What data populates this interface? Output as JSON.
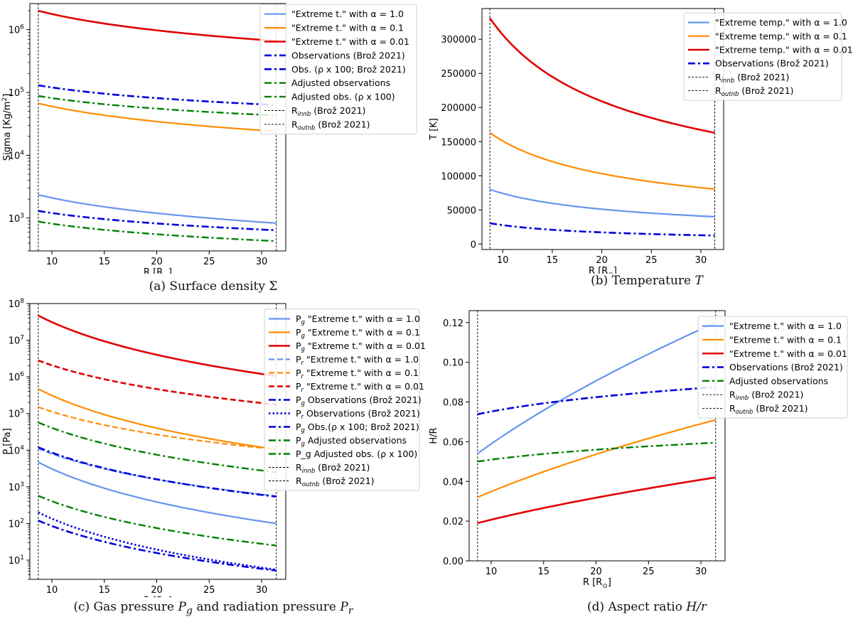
{
  "chart_data": [
    {
      "id": "a",
      "type": "line",
      "caption_prefix": "(a) Surface density",
      "caption_symbol": "Σ",
      "xlabel": "R [R",
      "xlabel_sub": "⊙",
      "xlabel_end": "]",
      "ylabel": "Sigma [Kg/m",
      "ylabel_sup": "2",
      "ylabel_end": "]",
      "yscale": "log",
      "xlim": [
        7.9,
        32.3
      ],
      "ylim": [
        300,
        2600000
      ],
      "xticks": [
        10,
        15,
        20,
        25,
        30
      ],
      "xtick_labels": [
        "10",
        "15",
        "20",
        "25",
        "30"
      ],
      "yticks": [
        1000,
        10000,
        100000,
        1000000
      ],
      "ytick_labels": [
        {
          "b": "10",
          "e": "3"
        },
        {
          "b": "10",
          "e": "4"
        },
        {
          "b": "10",
          "e": "5"
        },
        {
          "b": "10",
          "e": "6"
        }
      ],
      "vlines": [
        8.7,
        31.4
      ],
      "series": [
        {
          "name": "\"Extreme t.\" with α = 1.0",
          "color": "#6495ED",
          "dash": "solid",
          "width": 2.2,
          "r0": 8.7,
          "r1": 31.4,
          "v0": 2350,
          "v1": 830
        },
        {
          "name": "\"Extreme t.\" with α = 0.1",
          "color": "#FF8C00",
          "dash": "solid",
          "width": 2.2,
          "r0": 8.7,
          "r1": 31.4,
          "v0": 67000,
          "v1": 24000
        },
        {
          "name": "\"Extreme t.\" with α = 0.01",
          "color": "#E00000",
          "dash": "solid",
          "width": 2.6,
          "r0": 8.7,
          "r1": 31.4,
          "v0": 2000000,
          "v1": 660000
        },
        {
          "name": "Observations (Brož 2021)",
          "color": "#0000DD",
          "dash": "dashdot",
          "width": 2.6,
          "r0": 8.7,
          "r1": 31.4,
          "v0": 1300,
          "v1": 640
        },
        {
          "name": "Obs. (ρ x 100; Brož 2021)",
          "color": "#0000DD",
          "dash": "dashdot",
          "width": 2.6,
          "r0": 8.7,
          "r1": 31.4,
          "v0": 130000,
          "v1": 63000
        },
        {
          "name": "Adjusted observations",
          "color": "#008000",
          "dash": "dashdot",
          "width": 2.4,
          "r0": 8.7,
          "r1": 31.4,
          "v0": 880,
          "v1": 430
        },
        {
          "name": "Adjusted obs. (ρ x 100)",
          "color": "#008000",
          "dash": "dashdot",
          "width": 2.4,
          "r0": 8.7,
          "r1": 31.4,
          "v0": 88000,
          "v1": 43000
        }
      ],
      "legend_lines": [
        {
          "name": "R",
          "sub": "innb",
          "tail": " (Brož 2021)"
        },
        {
          "name": "R",
          "sub": "outnb",
          "tail": " (Brož 2021)"
        }
      ],
      "legend_loc": "top-right"
    },
    {
      "id": "b",
      "type": "line",
      "caption_prefix": "(b) Temperature",
      "caption_symbol": "T",
      "xlabel": "R [R",
      "xlabel_sub": "⊙",
      "xlabel_end": "]",
      "ylabel": "T [K]",
      "yscale": "linear",
      "xlim": [
        7.9,
        32.3
      ],
      "ylim": [
        -8000,
        345000
      ],
      "xticks": [
        10,
        15,
        20,
        25,
        30
      ],
      "xtick_labels": [
        "10",
        "15",
        "20",
        "25",
        "30"
      ],
      "yticks": [
        0,
        50000,
        100000,
        150000,
        200000,
        250000,
        300000
      ],
      "ytick_labels": [
        "0",
        "50000",
        "100000",
        "150000",
        "200000",
        "250000",
        "300000"
      ],
      "vlines": [
        8.7,
        31.4
      ],
      "series": [
        {
          "name": "\"Extreme temp.\" with α = 1.0",
          "color": "#6495ED",
          "dash": "solid",
          "width": 2.2,
          "r0": 8.7,
          "r1": 31.4,
          "v0": 80000,
          "v1": 40000
        },
        {
          "name": "\"Extreme temp.\" with α = 0.1",
          "color": "#FF8C00",
          "dash": "solid",
          "width": 2.2,
          "r0": 8.7,
          "r1": 31.4,
          "v0": 163000,
          "v1": 80500
        },
        {
          "name": "\"Extreme temp.\" with α = 0.01",
          "color": "#E00000",
          "dash": "solid",
          "width": 2.6,
          "r0": 8.7,
          "r1": 31.4,
          "v0": 331000,
          "v1": 163000
        },
        {
          "name": "Observations (Brož 2021)",
          "color": "#0000DD",
          "dash": "dashdot",
          "width": 2.6,
          "r0": 8.7,
          "r1": 31.4,
          "v0": 30500,
          "v1": 12500
        }
      ],
      "legend_lines": [
        {
          "name": "R",
          "sub": "innb",
          "tail": " (Brož 2021)"
        },
        {
          "name": "R",
          "sub": "outnb",
          "tail": " (Brož 2021)"
        }
      ],
      "legend_loc": "top-right"
    },
    {
      "id": "c",
      "type": "line",
      "caption_prefix": "(c) Gas pressure",
      "caption_symbol": "P",
      "caption_symbol_sub": "g",
      "caption_middle": "and radiation pressure",
      "caption_symbol2": "P",
      "caption_symbol2_sub": "r",
      "xlabel": "R [R",
      "xlabel_sub": "⊙",
      "xlabel_end": "]",
      "ylabel": "P [Pa]",
      "yscale": "log",
      "xlim": [
        7.9,
        32.3
      ],
      "ylim": [
        3,
        100000000
      ],
      "xticks": [
        10,
        15,
        20,
        25,
        30
      ],
      "xtick_labels": [
        "10",
        "15",
        "20",
        "25",
        "30"
      ],
      "yticks": [
        10,
        100,
        1000,
        10000,
        100000,
        1000000,
        10000000,
        100000000
      ],
      "ytick_labels": [
        {
          "b": "10",
          "e": "1"
        },
        {
          "b": "10",
          "e": "2"
        },
        {
          "b": "10",
          "e": "3"
        },
        {
          "b": "10",
          "e": "4"
        },
        {
          "b": "10",
          "e": "5"
        },
        {
          "b": "10",
          "e": "6"
        },
        {
          "b": "10",
          "e": "7"
        },
        {
          "b": "10",
          "e": "8"
        }
      ],
      "vlines": [
        8.7,
        31.4
      ],
      "series": [
        {
          "name": "\"Extreme t.\" with α = 1.0",
          "prefix": "P",
          "prefix_sub": "g",
          "color": "#6495ED",
          "dash": "solid",
          "width": 2.2,
          "r0": 8.7,
          "r1": 31.4,
          "v0": 4700,
          "v1": 100
        },
        {
          "name": "\"Extreme t.\" with α = 0.1",
          "prefix": "P",
          "prefix_sub": "g",
          "color": "#FF8C00",
          "dash": "solid",
          "width": 2.2,
          "r0": 8.7,
          "r1": 31.4,
          "v0": 470000,
          "v1": 10500
        },
        {
          "name": "\"Extreme t.\" with α = 0.01",
          "prefix": "P",
          "prefix_sub": "g",
          "color": "#E00000",
          "dash": "solid",
          "width": 2.6,
          "r0": 8.7,
          "r1": 31.4,
          "v0": 47000000,
          "v1": 1050000
        },
        {
          "name": "\"Extreme t.\" with α = 1.0",
          "prefix": "P",
          "prefix_sub": "r",
          "color": "#6495ED",
          "dash": "dashed",
          "width": 2.2,
          "r0": 8.7,
          "r1": 31.4,
          "v0": 11000,
          "v1": 560
        },
        {
          "name": "\"Extreme t.\" with α = 0.1",
          "prefix": "P",
          "prefix_sub": "r",
          "color": "#FF8C00",
          "dash": "dashed",
          "width": 2.2,
          "r0": 8.7,
          "r1": 31.4,
          "v0": 150000,
          "v1": 10500
        },
        {
          "name": "\"Extreme t.\" with α = 0.01",
          "prefix": "P",
          "prefix_sub": "r",
          "color": "#E00000",
          "dash": "dashed",
          "width": 2.6,
          "r0": 8.7,
          "r1": 31.4,
          "v0": 2800000,
          "v1": 175000
        },
        {
          "name": "Observations (Brož 2021)",
          "prefix": "P",
          "prefix_sub": "g",
          "color": "#0000DD",
          "dash": "dashdot",
          "width": 2.6,
          "r0": 8.7,
          "r1": 31.4,
          "v0": 120,
          "v1": 5.2
        },
        {
          "name": "Observations (Brož 2021)",
          "prefix": "P",
          "prefix_sub": "r",
          "color": "#0000DD",
          "dash": "dotted",
          "width": 2.6,
          "r0": 8.7,
          "r1": 31.4,
          "v0": 200,
          "v1": 5.5
        },
        {
          "name": "Obs.(ρ x 100; Brož 2021)",
          "prefix": "P",
          "prefix_sub": "g",
          "color": "#0000DD",
          "dash": "dashdot",
          "width": 2.6,
          "r0": 8.7,
          "r1": 31.4,
          "v0": 12000,
          "v1": 540
        },
        {
          "name": "Adjusted observations",
          "prefix": "P",
          "prefix_sub": "g",
          "color": "#008000",
          "dash": "dashdot",
          "width": 2.4,
          "r0": 8.7,
          "r1": 31.4,
          "v0": 570,
          "v1": 25
        },
        {
          "name": "P_g Adjusted obs. (ρ x 100)",
          "color": "#008000",
          "dash": "dashdot",
          "width": 2.4,
          "r0": 8.7,
          "r1": 31.4,
          "v0": 57000,
          "v1": 2500
        }
      ],
      "legend_lines": [
        {
          "name": "R",
          "sub": "innb",
          "tail": " (Brož 2021)"
        },
        {
          "name": "R",
          "sub": "outnb",
          "tail": " (Brož 2021)"
        }
      ],
      "legend_loc": "top-right"
    },
    {
      "id": "d",
      "type": "line",
      "caption_prefix": "(d) Aspect ratio",
      "caption_symbol": "H/r",
      "xlabel": "R [R",
      "xlabel_sub": "⊙",
      "xlabel_end": "]",
      "ylabel": "H/R",
      "yscale": "linear",
      "xlim": [
        7.9,
        32.3
      ],
      "ylim": [
        0,
        0.126
      ],
      "xticks": [
        10,
        15,
        20,
        25,
        30
      ],
      "xtick_labels": [
        "10",
        "15",
        "20",
        "25",
        "30"
      ],
      "yticks": [
        0,
        0.02,
        0.04,
        0.06,
        0.08,
        0.1,
        0.12
      ],
      "ytick_labels": [
        "0.00",
        "0.02",
        "0.04",
        "0.06",
        "0.08",
        "0.10",
        "0.12"
      ],
      "vlines": [
        8.7,
        31.4
      ],
      "series": [
        {
          "name": "\"Extreme t.\" with α = 1.0",
          "color": "#6495ED",
          "dash": "solid",
          "width": 2.2,
          "r0": 8.7,
          "r1": 31.4,
          "v0": 0.054,
          "v1": 0.12
        },
        {
          "name": "\"Extreme t.\" with α = 0.1",
          "color": "#FF8C00",
          "dash": "solid",
          "width": 2.2,
          "r0": 8.7,
          "r1": 31.4,
          "v0": 0.032,
          "v1": 0.071
        },
        {
          "name": "\"Extreme t.\" with α = 0.01",
          "color": "#E00000",
          "dash": "solid",
          "width": 2.6,
          "r0": 8.7,
          "r1": 31.4,
          "v0": 0.019,
          "v1": 0.042
        },
        {
          "name": "Observations (Brož 2021)",
          "color": "#0000DD",
          "dash": "dashdot",
          "width": 2.6,
          "r0": 8.7,
          "r1": 31.4,
          "v0": 0.0738,
          "v1": 0.0875
        },
        {
          "name": "Adjusted observations",
          "color": "#008000",
          "dash": "dashdot",
          "width": 2.4,
          "r0": 8.7,
          "r1": 31.4,
          "v0": 0.05,
          "v1": 0.0595
        }
      ],
      "legend_lines": [
        {
          "name": "R",
          "sub": "innb",
          "tail": " (Brož 2021)"
        },
        {
          "name": "R",
          "sub": "outnb",
          "tail": " (Brož 2021)"
        }
      ],
      "legend_loc": "top-right"
    }
  ]
}
